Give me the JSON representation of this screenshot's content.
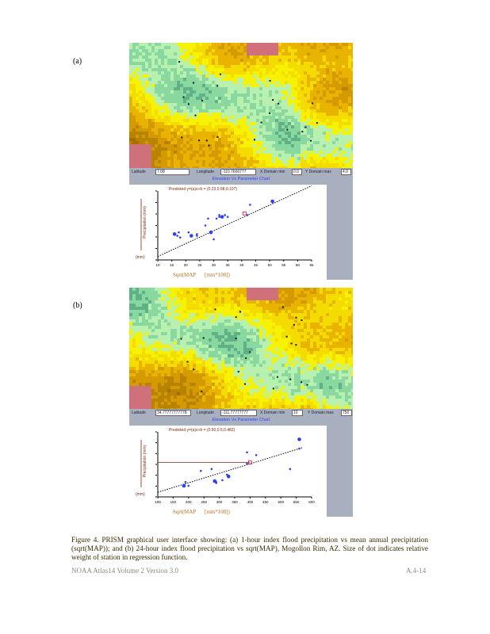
{
  "panels": [
    {
      "label": "(a)",
      "toolbar": {
        "field1_label": "Latitude",
        "field1_value": "7.08",
        "field2_label": "Longitude",
        "field2_value": "-110.7666777",
        "field3_label": "X Domain min",
        "field3_value": "0.0",
        "field4_label": "Y Domain max",
        "field4_value": "4.0"
      },
      "title": "Elevation Vs Parameter Chart",
      "equation": "Predicted y=(a)x+b = (0.23,0.58,0.107)",
      "y_unit": "(mm)",
      "x_axis_label": "Sqrt(MAP",
      "x_axis_unit": "[mm*100])"
    },
    {
      "label": "(b)",
      "toolbar": {
        "field1_label": "Latitude",
        "field1_value": "34.77777777778",
        "field2_label": "Longitude",
        "field2_value": "-111.77777777",
        "field3_label": "X Domain min",
        "field3_value": "10",
        "field4_label": "Y Domain max",
        "field4_value": "750"
      },
      "title": "Elevation Vs Parameter Chart",
      "equation": "Predicted y=(a)x+b = (0.60,0.5,0.482)",
      "y_unit": "(mm)",
      "x_axis_label": "Sqrt(MAP",
      "x_axis_unit": "[mm*100])"
    }
  ],
  "chart_data": [
    {
      "type": "scatter",
      "title": "Predicted y=(a)x+b",
      "xlabel": "Sqrt(MAP [mm*100])",
      "ylabel": "Precipitation (mm)",
      "x_ticks": [
        "10",
        "15",
        "20",
        "25",
        "30",
        "35",
        "40",
        "45",
        "50",
        "55",
        "60",
        "65"
      ],
      "xlim": [
        10,
        65
      ],
      "ylim": [
        0,
        40
      ],
      "points": [
        [
          16,
          15
        ],
        [
          17,
          14
        ],
        [
          17.5,
          16
        ],
        [
          18,
          13
        ],
        [
          21,
          16
        ],
        [
          22,
          14
        ],
        [
          24,
          15
        ],
        [
          24,
          14
        ],
        [
          27,
          20
        ],
        [
          28,
          24
        ],
        [
          29,
          16
        ],
        [
          30,
          12
        ],
        [
          31,
          24
        ],
        [
          32,
          26
        ],
        [
          32,
          25
        ],
        [
          33,
          25
        ],
        [
          34,
          26
        ],
        [
          35,
          25
        ],
        [
          42,
          26
        ],
        [
          43,
          32
        ],
        [
          51,
          34
        ]
      ],
      "regression": [
        [
          10,
          2
        ],
        [
          65,
          43
        ]
      ],
      "highlight": [
        41,
        27
      ]
    },
    {
      "type": "scatter",
      "title": "Predicted y=(a)x+b",
      "xlabel": "Sqrt(MAP [mm*100])",
      "ylabel": "Precipitation (mm)",
      "x_ticks": [
        "100",
        "150",
        "200",
        "250",
        "300",
        "350",
        "400",
        "450",
        "500",
        "550",
        "600"
      ],
      "xlim": [
        100,
        600
      ],
      "ylim": [
        0,
        70
      ],
      "points": [
        [
          185,
          12
        ],
        [
          190,
          16
        ],
        [
          200,
          12
        ],
        [
          240,
          28
        ],
        [
          275,
          30
        ],
        [
          285,
          17
        ],
        [
          290,
          16
        ],
        [
          290,
          15
        ],
        [
          310,
          18
        ],
        [
          325,
          24
        ],
        [
          330,
          22
        ],
        [
          390,
          36
        ],
        [
          390,
          48
        ],
        [
          420,
          45
        ],
        [
          530,
          30
        ],
        [
          560,
          62
        ],
        [
          560,
          52
        ]
      ],
      "regression": [
        [
          100,
          5
        ],
        [
          570,
          53
        ]
      ],
      "highlight": [
        400,
        37
      ]
    }
  ],
  "caption": "Figure 4. PRISM graphical user interface showing: (a) 1-hour index flood precipitation vs mean annual precipitation (sqrt(MAP)); and (b) 24-hour index flood precipitation vs sqrt(MAP), Mogollon Rim, AZ. Size of dot indicates relative weight of station in regression function.",
  "footer": {
    "left": "NOAA  Atlas14   Volume  2 Version  3.0",
    "right": "A.4-14"
  }
}
